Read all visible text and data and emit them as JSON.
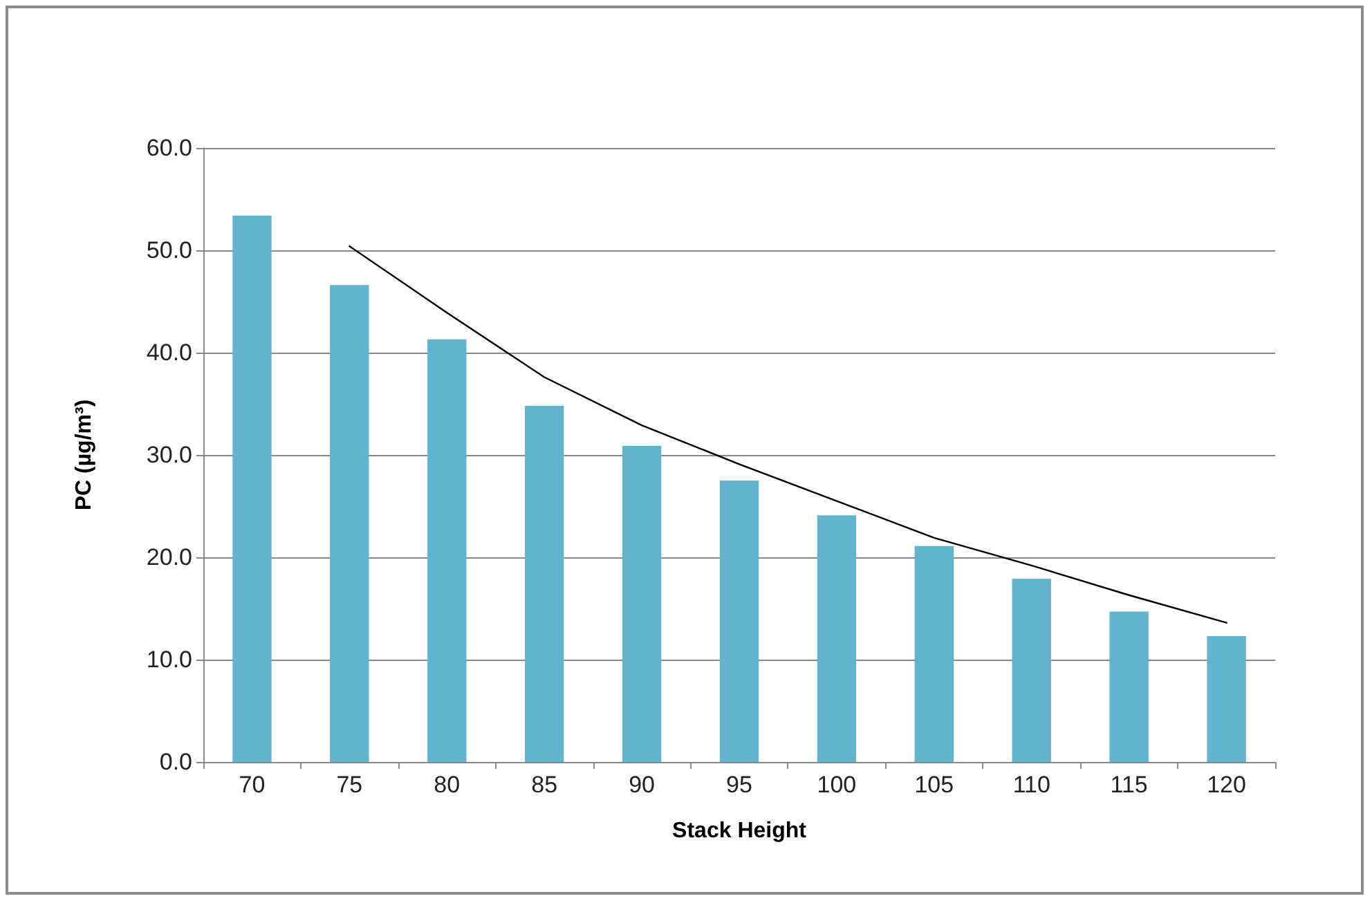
{
  "chart_data": {
    "type": "bar",
    "xlabel": "Stack Height",
    "ylabel": "PC (µg/m³)",
    "categories": [
      "70",
      "75",
      "80",
      "85",
      "90",
      "95",
      "100",
      "105",
      "110",
      "115",
      "120"
    ],
    "series": [
      {
        "color": "#62b4cd",
        "values": [
          53.4,
          46.6,
          41.3,
          34.8,
          30.9,
          27.5,
          24.1,
          21.1,
          17.9,
          14.7,
          12.3
        ]
      },
      {
        "type": "line",
        "color": "#000000",
        "values": [
          null,
          50.4,
          43.9,
          37.6,
          32.9,
          29.1,
          25.5,
          21.9,
          19.2,
          16.3,
          13.6
        ]
      }
    ],
    "ylim": [
      0,
      60
    ],
    "yticks": [
      {
        "value": 0,
        "label": "0.0"
      },
      {
        "value": 10,
        "label": "10.0"
      },
      {
        "value": 20,
        "label": "20.0"
      },
      {
        "value": 30,
        "label": "30.0"
      },
      {
        "value": 40,
        "label": "40.0"
      },
      {
        "value": 50,
        "label": "50.0"
      },
      {
        "value": 60,
        "label": "60.0"
      }
    ],
    "grid": "y",
    "marker": "none",
    "line_style": "solid"
  }
}
